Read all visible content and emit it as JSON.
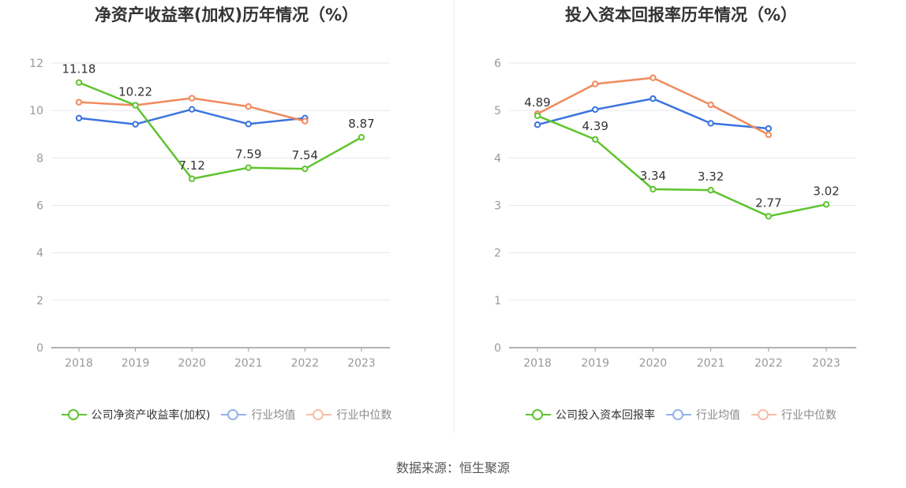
{
  "source": "数据来源：恒生聚源",
  "colors": {
    "company": "#5ec42e",
    "avg": "#3b74dd",
    "median": "#f08a5d",
    "grid": "#e6e8f0",
    "axis": "#999999",
    "tick": "#999999",
    "label": "#333333"
  },
  "chart_data": [
    {
      "type": "line",
      "title": "净资产收益率(加权)历年情况（%）",
      "categories": [
        "2018",
        "2019",
        "2020",
        "2021",
        "2022",
        "2023"
      ],
      "ylim": [
        0,
        12
      ],
      "yticks": [
        0,
        2,
        4,
        6,
        8,
        10,
        12
      ],
      "grid": true,
      "legend_position": "bottom",
      "series": [
        {
          "name": "公司净资产收益率(加权)",
          "values": [
            11.18,
            10.22,
            7.12,
            7.59,
            7.54,
            8.87
          ],
          "labels": [
            "11.18",
            "10.22",
            "7.12",
            "7.59",
            "7.54",
            "8.87"
          ],
          "color": "#5ec42e"
        },
        {
          "name": "行业均值",
          "values": [
            9.68,
            9.42,
            10.05,
            9.43,
            9.68,
            null
          ],
          "color": "#3b74dd"
        },
        {
          "name": "行业中位数",
          "values": [
            10.35,
            10.22,
            10.52,
            10.17,
            9.55,
            null
          ],
          "color": "#f08a5d"
        }
      ]
    },
    {
      "type": "line",
      "title": "投入资本回报率历年情况（%）",
      "categories": [
        "2018",
        "2019",
        "2020",
        "2021",
        "2022",
        "2023"
      ],
      "ylim": [
        0,
        6
      ],
      "yticks": [
        0,
        1,
        2,
        3,
        4,
        5,
        6
      ],
      "grid": true,
      "legend_position": "bottom",
      "series": [
        {
          "name": "公司投入资本回报率",
          "values": [
            4.89,
            4.39,
            3.34,
            3.32,
            2.77,
            3.02
          ],
          "labels": [
            "4.89",
            "4.39",
            "3.34",
            "3.32",
            "2.77",
            "3.02"
          ],
          "color": "#5ec42e"
        },
        {
          "name": "行业均值",
          "values": [
            4.7,
            5.02,
            5.25,
            4.73,
            4.62,
            null
          ],
          "color": "#3b74dd"
        },
        {
          "name": "行业中位数",
          "values": [
            4.93,
            5.56,
            5.69,
            5.12,
            4.49,
            null
          ],
          "color": "#f08a5d"
        }
      ]
    }
  ]
}
